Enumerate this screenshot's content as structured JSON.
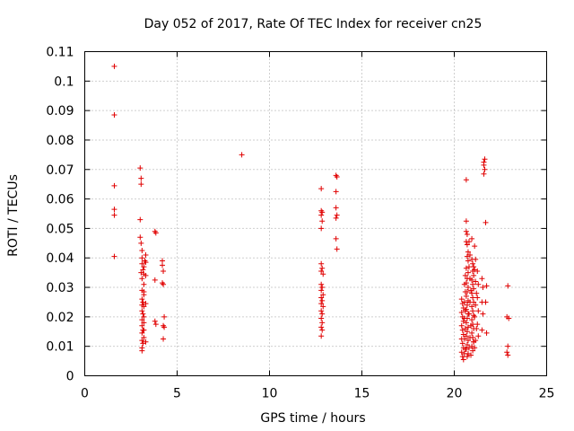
{
  "chart_data": {
    "type": "scatter",
    "title": "Day 052 of 2017, Rate Of TEC Index for receiver cn25",
    "xlabel": "GPS time / hours",
    "ylabel": "ROTI / TECUs",
    "xlim": [
      0,
      25
    ],
    "ylim": [
      0,
      0.11
    ],
    "x_ticks": [
      0,
      5,
      10,
      15,
      20,
      25
    ],
    "x_tick_labels": [
      "0",
      "5",
      "10",
      "15",
      "20",
      "25"
    ],
    "y_ticks": [
      0,
      0.01,
      0.02,
      0.03,
      0.04,
      0.05,
      0.06,
      0.07,
      0.08,
      0.09,
      0.1,
      0.11
    ],
    "y_tick_labels": [
      "0",
      "0.01",
      "0.02",
      "0.03",
      "0.04",
      "0.05",
      "0.06",
      "0.07",
      "0.08",
      "0.09",
      "0.1",
      "0.11"
    ],
    "grid": true,
    "marker": "plus",
    "color": "#e00000",
    "points": [
      [
        1.6,
        0.105
      ],
      [
        1.6,
        0.0885
      ],
      [
        1.6,
        0.0645
      ],
      [
        1.6,
        0.0565
      ],
      [
        1.6,
        0.0545
      ],
      [
        1.6,
        0.0405
      ],
      [
        3.0,
        0.0705
      ],
      [
        3.05,
        0.067
      ],
      [
        3.05,
        0.065
      ],
      [
        3.0,
        0.053
      ],
      [
        3.0,
        0.047
      ],
      [
        3.05,
        0.045
      ],
      [
        3.1,
        0.0425
      ],
      [
        3.1,
        0.04
      ],
      [
        3.1,
        0.038
      ],
      [
        3.15,
        0.036
      ],
      [
        3.05,
        0.035
      ],
      [
        3.2,
        0.0345
      ],
      [
        3.1,
        0.033
      ],
      [
        3.2,
        0.031
      ],
      [
        3.1,
        0.029
      ],
      [
        3.2,
        0.0275
      ],
      [
        3.1,
        0.026
      ],
      [
        3.15,
        0.025
      ],
      [
        3.1,
        0.024
      ],
      [
        3.2,
        0.0235
      ],
      [
        3.1,
        0.022
      ],
      [
        3.15,
        0.021
      ],
      [
        3.1,
        0.019
      ],
      [
        3.2,
        0.018
      ],
      [
        3.1,
        0.017
      ],
      [
        3.15,
        0.0155
      ],
      [
        3.1,
        0.0145
      ],
      [
        3.2,
        0.013
      ],
      [
        3.1,
        0.012
      ],
      [
        3.15,
        0.011
      ],
      [
        3.1,
        0.0095
      ],
      [
        3.1,
        0.0085
      ],
      [
        3.25,
        0.039
      ],
      [
        3.3,
        0.041
      ],
      [
        3.3,
        0.0385
      ],
      [
        3.2,
        0.037
      ],
      [
        3.3,
        0.034
      ],
      [
        3.2,
        0.0285
      ],
      [
        3.3,
        0.0245
      ],
      [
        3.2,
        0.02
      ],
      [
        3.2,
        0.0155
      ],
      [
        3.3,
        0.0115
      ],
      [
        3.8,
        0.049
      ],
      [
        3.85,
        0.0485
      ],
      [
        3.8,
        0.0325
      ],
      [
        3.8,
        0.0185
      ],
      [
        3.85,
        0.0175
      ],
      [
        4.2,
        0.039
      ],
      [
        4.2,
        0.0375
      ],
      [
        4.25,
        0.0355
      ],
      [
        4.2,
        0.0315
      ],
      [
        4.25,
        0.031
      ],
      [
        4.3,
        0.02
      ],
      [
        4.25,
        0.017
      ],
      [
        4.3,
        0.0165
      ],
      [
        4.25,
        0.0125
      ],
      [
        8.5,
        0.075
      ],
      [
        12.8,
        0.0635
      ],
      [
        12.8,
        0.056
      ],
      [
        12.85,
        0.0555
      ],
      [
        12.8,
        0.0545
      ],
      [
        12.85,
        0.0525
      ],
      [
        12.8,
        0.05
      ],
      [
        12.8,
        0.038
      ],
      [
        12.85,
        0.0365
      ],
      [
        12.8,
        0.0355
      ],
      [
        12.9,
        0.0345
      ],
      [
        12.8,
        0.031
      ],
      [
        12.85,
        0.03
      ],
      [
        12.8,
        0.029
      ],
      [
        12.9,
        0.0275
      ],
      [
        12.8,
        0.0265
      ],
      [
        12.85,
        0.0255
      ],
      [
        12.8,
        0.0245
      ],
      [
        12.9,
        0.0235
      ],
      [
        12.8,
        0.022
      ],
      [
        12.85,
        0.021
      ],
      [
        12.8,
        0.0195
      ],
      [
        12.85,
        0.018
      ],
      [
        12.8,
        0.0165
      ],
      [
        12.85,
        0.0155
      ],
      [
        12.8,
        0.0135
      ],
      [
        13.6,
        0.068
      ],
      [
        13.65,
        0.0675
      ],
      [
        13.6,
        0.0625
      ],
      [
        13.6,
        0.057
      ],
      [
        13.65,
        0.0545
      ],
      [
        13.6,
        0.0535
      ],
      [
        13.6,
        0.0465
      ],
      [
        13.65,
        0.043
      ],
      [
        20.4,
        0.026
      ],
      [
        20.45,
        0.0245
      ],
      [
        20.5,
        0.023
      ],
      [
        20.4,
        0.0215
      ],
      [
        20.45,
        0.02
      ],
      [
        20.5,
        0.0185
      ],
      [
        20.4,
        0.017
      ],
      [
        20.45,
        0.0155
      ],
      [
        20.5,
        0.014
      ],
      [
        20.4,
        0.0125
      ],
      [
        20.45,
        0.011
      ],
      [
        20.5,
        0.0095
      ],
      [
        20.4,
        0.008
      ],
      [
        20.45,
        0.0065
      ],
      [
        20.5,
        0.0055
      ],
      [
        20.55,
        0.0075
      ],
      [
        20.6,
        0.009
      ],
      [
        20.55,
        0.0125
      ],
      [
        20.6,
        0.016
      ],
      [
        20.55,
        0.0195
      ],
      [
        20.6,
        0.022
      ],
      [
        20.55,
        0.025
      ],
      [
        20.6,
        0.0285
      ],
      [
        20.55,
        0.031
      ],
      [
        20.6,
        0.034
      ],
      [
        20.65,
        0.049
      ],
      [
        20.7,
        0.048
      ],
      [
        20.65,
        0.0455
      ],
      [
        20.7,
        0.0445
      ],
      [
        20.75,
        0.042
      ],
      [
        20.7,
        0.0405
      ],
      [
        20.75,
        0.039
      ],
      [
        20.65,
        0.0365
      ],
      [
        20.75,
        0.035
      ],
      [
        20.7,
        0.033
      ],
      [
        20.65,
        0.0315
      ],
      [
        20.75,
        0.03
      ],
      [
        20.7,
        0.0285
      ],
      [
        20.65,
        0.027
      ],
      [
        20.75,
        0.0255
      ],
      [
        20.7,
        0.024
      ],
      [
        20.65,
        0.0225
      ],
      [
        20.75,
        0.021
      ],
      [
        20.7,
        0.0195
      ],
      [
        20.65,
        0.018
      ],
      [
        20.75,
        0.0165
      ],
      [
        20.7,
        0.015
      ],
      [
        20.65,
        0.0135
      ],
      [
        20.75,
        0.012
      ],
      [
        20.7,
        0.0105
      ],
      [
        20.65,
        0.009
      ],
      [
        20.75,
        0.0075
      ],
      [
        20.7,
        0.0065
      ],
      [
        20.65,
        0.0665
      ],
      [
        20.65,
        0.0525
      ],
      [
        20.8,
        0.0455
      ],
      [
        20.85,
        0.041
      ],
      [
        20.8,
        0.037
      ],
      [
        20.85,
        0.033
      ],
      [
        20.9,
        0.029
      ],
      [
        20.85,
        0.025
      ],
      [
        20.8,
        0.021
      ],
      [
        20.9,
        0.017
      ],
      [
        20.85,
        0.013
      ],
      [
        20.8,
        0.0095
      ],
      [
        20.9,
        0.007
      ],
      [
        20.95,
        0.0395
      ],
      [
        21.0,
        0.038
      ],
      [
        21.05,
        0.037
      ],
      [
        21.0,
        0.0355
      ],
      [
        21.05,
        0.034
      ],
      [
        20.95,
        0.0325
      ],
      [
        21.0,
        0.031
      ],
      [
        21.05,
        0.0295
      ],
      [
        20.95,
        0.028
      ],
      [
        21.0,
        0.0265
      ],
      [
        21.05,
        0.025
      ],
      [
        20.95,
        0.0235
      ],
      [
        21.0,
        0.022
      ],
      [
        21.05,
        0.0205
      ],
      [
        20.95,
        0.019
      ],
      [
        21.0,
        0.0175
      ],
      [
        21.05,
        0.016
      ],
      [
        20.95,
        0.0145
      ],
      [
        21.0,
        0.013
      ],
      [
        21.05,
        0.0115
      ],
      [
        20.95,
        0.01
      ],
      [
        21.0,
        0.0085
      ],
      [
        21.05,
        0.0115
      ],
      [
        20.95,
        0.0465
      ],
      [
        21.1,
        0.044
      ],
      [
        21.15,
        0.0395
      ],
      [
        21.1,
        0.036
      ],
      [
        21.15,
        0.032
      ],
      [
        21.2,
        0.028
      ],
      [
        21.15,
        0.024
      ],
      [
        21.1,
        0.02
      ],
      [
        21.2,
        0.016
      ],
      [
        21.15,
        0.012
      ],
      [
        21.1,
        0.0095
      ],
      [
        21.25,
        0.0355
      ],
      [
        21.3,
        0.031
      ],
      [
        21.25,
        0.0265
      ],
      [
        21.3,
        0.022
      ],
      [
        21.25,
        0.0175
      ],
      [
        21.3,
        0.0135
      ],
      [
        21.5,
        0.033
      ],
      [
        21.55,
        0.03
      ],
      [
        21.5,
        0.025
      ],
      [
        21.55,
        0.021
      ],
      [
        21.5,
        0.0155
      ],
      [
        21.6,
        0.0725
      ],
      [
        21.65,
        0.0735
      ],
      [
        21.6,
        0.0715
      ],
      [
        21.65,
        0.07
      ],
      [
        21.6,
        0.0685
      ],
      [
        21.7,
        0.052
      ],
      [
        21.75,
        0.0305
      ],
      [
        21.7,
        0.025
      ],
      [
        21.75,
        0.0145
      ],
      [
        22.9,
        0.0305
      ],
      [
        22.85,
        0.02
      ],
      [
        22.95,
        0.0195
      ],
      [
        22.9,
        0.01
      ],
      [
        22.85,
        0.008
      ],
      [
        22.9,
        0.007
      ]
    ]
  }
}
